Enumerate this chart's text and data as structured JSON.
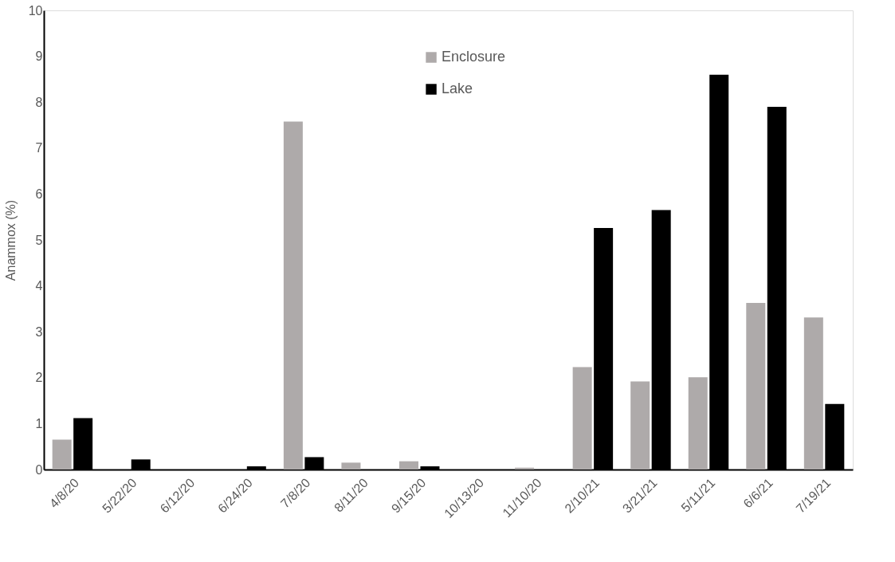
{
  "chart_data": {
    "type": "bar",
    "ylabel": "Anammox (%)",
    "categories": [
      "4/8/20",
      "5/22/20",
      "6/12/20",
      "6/24/20",
      "7/8/20",
      "8/11/20",
      "9/15/20",
      "10/13/20",
      "11/10/20",
      "2/10/21",
      "3/21/21",
      "5/11/21",
      "6/6/21",
      "7/19/21"
    ],
    "series": [
      {
        "name": "Enclosure",
        "color": "#aeaaaa",
        "values": [
          0.65,
          0,
          0,
          0,
          7.58,
          0.15,
          0.18,
          0,
          0.04,
          2.23,
          1.92,
          2.01,
          3.63,
          3.31
        ]
      },
      {
        "name": "Lake",
        "color": "#000000",
        "values": [
          1.12,
          0.22,
          0,
          0.07,
          0.27,
          0,
          0.07,
          0,
          0,
          5.26,
          5.65,
          8.6,
          7.9,
          1.43
        ]
      }
    ],
    "ylim": [
      0,
      10
    ],
    "yticks": [
      0,
      1,
      2,
      3,
      4,
      5,
      6,
      7,
      8,
      9,
      10
    ],
    "grid": false,
    "legend": "top"
  }
}
